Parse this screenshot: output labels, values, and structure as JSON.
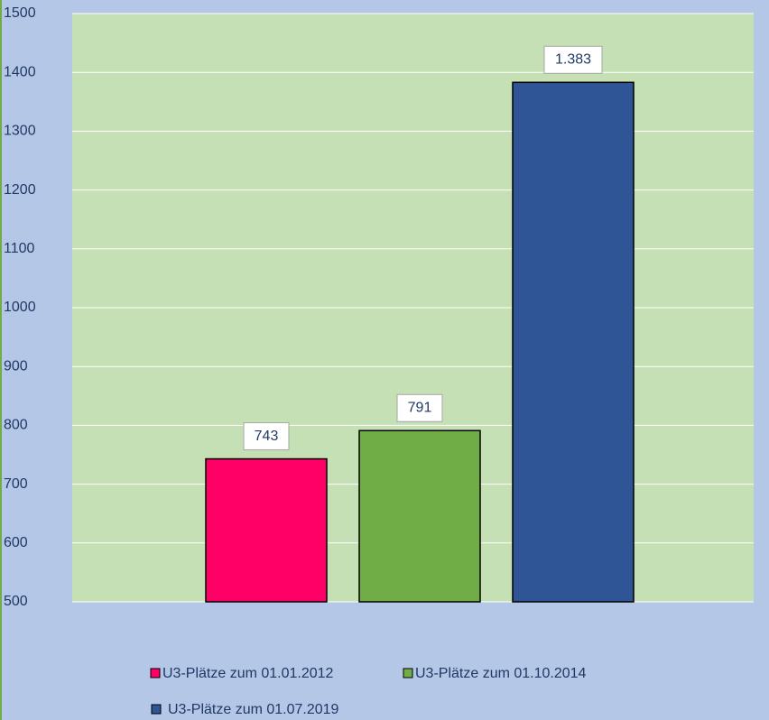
{
  "chart_data": {
    "type": "bar",
    "series": [
      {
        "name": "U3-Plätze zum 01.01.2012",
        "color": "#ff0066",
        "values": [
          743
        ]
      },
      {
        "name": "U3-Plätze zum 01.10.2014",
        "color": "#70ad47",
        "values": [
          791
        ]
      },
      {
        "name": "U3-Plätze zum 01.07.2019",
        "color": "#2f5597",
        "values": [
          1383
        ],
        "value_labels": [
          "1.383"
        ]
      }
    ],
    "ylim": [
      500,
      1500
    ],
    "yticks": [
      500,
      600,
      700,
      800,
      900,
      1000,
      1100,
      1200,
      1300,
      1400,
      1500
    ],
    "grid": true,
    "legend": "bottom"
  }
}
